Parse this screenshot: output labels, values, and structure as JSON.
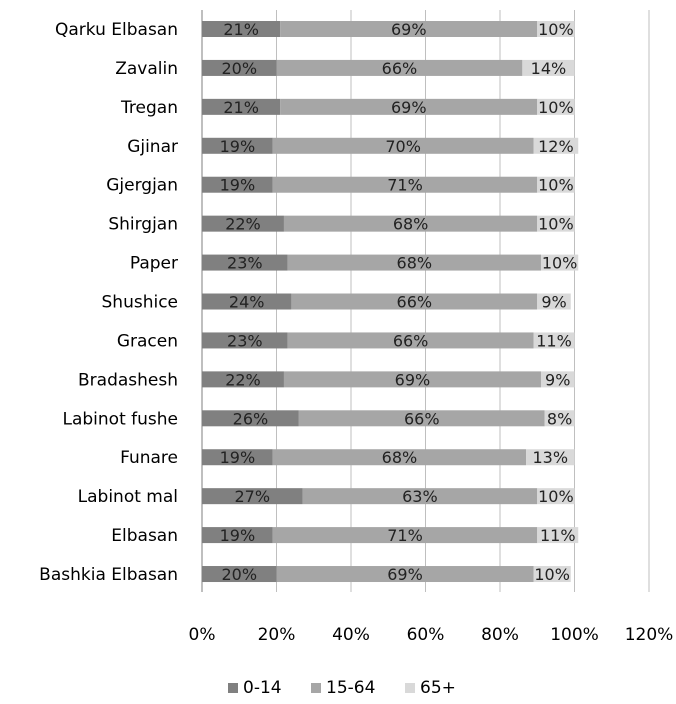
{
  "chart_data": {
    "type": "bar",
    "orientation": "horizontal",
    "stacked": true,
    "categories": [
      "Qarku Elbasan",
      "Zavalin",
      "Tregan",
      "Gjinar",
      "Gjergjan",
      "Shirgjan",
      "Paper",
      "Shushice",
      "Gracen",
      "Bradashesh",
      "Labinot fushe",
      "Funare",
      "Labinot mal",
      "Elbasan",
      "Bashkia Elbasan"
    ],
    "series": [
      {
        "name": "0-14",
        "color": "#808080",
        "values": [
          21,
          20,
          21,
          19,
          19,
          22,
          23,
          24,
          23,
          22,
          26,
          19,
          27,
          19,
          20
        ],
        "labels": [
          "21%",
          "20%",
          "21%",
          "19%",
          "19%",
          "22%",
          "23%",
          "24%",
          "23%",
          "22%",
          "26%",
          "19%",
          "27%",
          "19%",
          "20%"
        ]
      },
      {
        "name": "15-64",
        "color": "#a6a6a6",
        "values": [
          69,
          66,
          69,
          70,
          71,
          68,
          68,
          66,
          66,
          69,
          66,
          68,
          63,
          71,
          69
        ],
        "labels": [
          "69%",
          "66%",
          "69%",
          "70%",
          "71%",
          "68%",
          "68%",
          "66%",
          "66%",
          "69%",
          "66%",
          "68%",
          "63%",
          "71%",
          "69%"
        ]
      },
      {
        "name": "65+",
        "color": "#d9d9d9",
        "values": [
          10,
          14,
          10,
          12,
          10,
          10,
          10,
          9,
          11,
          9,
          8,
          13,
          10,
          11,
          10
        ],
        "labels": [
          "10%",
          "14%",
          "10%",
          "12%",
          "10%",
          "10%",
          "10%",
          "9%",
          "11%",
          "9%",
          "8%",
          "13%",
          "10%",
          "11%",
          "10%"
        ]
      }
    ],
    "xlim": [
      0,
      120
    ],
    "xticks": [
      "0%",
      "20%",
      "40%",
      "60%",
      "80%",
      "100%",
      "120%"
    ],
    "grid": true,
    "legend_position": "bottom"
  }
}
